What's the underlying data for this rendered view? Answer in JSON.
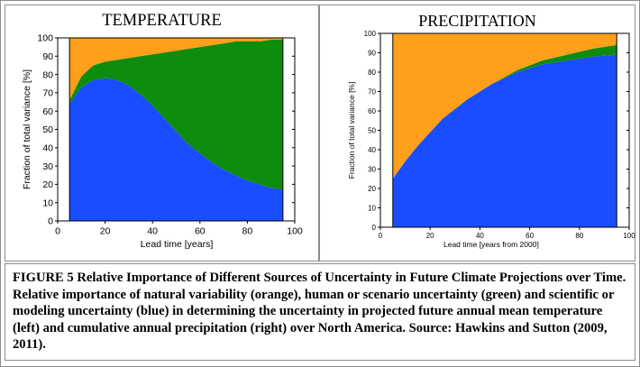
{
  "charts": [
    {
      "panel_title": "TEMPERATURE",
      "ylabel": "Fraction of total variance [%]",
      "xlabel": "Lead time  [years]"
    },
    {
      "panel_title": "PRECIPITATION",
      "ylabel": "Fraction of total variance [%]",
      "xlabel": "Lead time  [years from 2000]"
    }
  ],
  "caption": "FIGURE 5  Relative Importance of Different Sources of Uncertainty in Future Climate Projections over Time. Relative importance of natural variability (orange), human or scenario uncertainty (green) and scientific or modeling uncertainty (blue) in determining the uncertainty in projected future annual mean temperature (left) and cumulative annual precipitation (right) over North America. Source: Hawkins and Sutton (2009, 2011).",
  "colors": {
    "natural": "#ff9f1a",
    "scenario": "#0d8c0d",
    "model": "#1a4dff"
  },
  "chart_data": [
    {
      "type": "area",
      "title": "TEMPERATURE",
      "xlabel": "Lead time  [years]",
      "ylabel": "Fraction of total variance [%]",
      "xlim": [
        0,
        100
      ],
      "ylim": [
        0,
        100
      ],
      "xticks": [
        0,
        20,
        40,
        60,
        80,
        100
      ],
      "yticks": [
        0,
        10,
        20,
        30,
        40,
        50,
        60,
        70,
        80,
        90,
        100
      ],
      "x": [
        5,
        10,
        15,
        20,
        25,
        30,
        35,
        40,
        45,
        50,
        55,
        60,
        65,
        70,
        75,
        80,
        85,
        90,
        95
      ],
      "series": [
        {
          "name": "scientific or modeling uncertainty",
          "color": "#1a4dff",
          "values": [
            64,
            73,
            77,
            78,
            77,
            74,
            69,
            63,
            56,
            49,
            42,
            37,
            32,
            28,
            25,
            22,
            20,
            18,
            17
          ]
        },
        {
          "name": "human or scenario uncertainty",
          "color": "#0d8c0d",
          "values": [
            2,
            6,
            8,
            9,
            11,
            15,
            21,
            28,
            36,
            44,
            52,
            58,
            64,
            69,
            73,
            76,
            78,
            81,
            82
          ]
        },
        {
          "name": "natural variability",
          "color": "#ff9f1a",
          "values": [
            34,
            21,
            15,
            13,
            12,
            11,
            10,
            9,
            8,
            7,
            6,
            5,
            4,
            3,
            2,
            2,
            2,
            1,
            1
          ]
        }
      ],
      "grid": false
    },
    {
      "type": "area",
      "title": "PRECIPITATION",
      "xlabel": "Lead time  [years from 2000]",
      "ylabel": "Fraction of total variance [%]",
      "xlim": [
        0,
        100
      ],
      "ylim": [
        0,
        100
      ],
      "xticks": [
        0,
        20,
        40,
        60,
        80,
        100
      ],
      "yticks": [
        0,
        10,
        20,
        30,
        40,
        50,
        60,
        70,
        80,
        90,
        100
      ],
      "x": [
        5,
        10,
        15,
        20,
        25,
        30,
        35,
        40,
        45,
        50,
        55,
        60,
        65,
        70,
        75,
        80,
        85,
        90,
        95
      ],
      "series": [
        {
          "name": "scientific or modeling uncertainty",
          "color": "#1a4dff",
          "values": [
            25,
            34,
            42,
            49,
            56,
            61,
            66,
            70,
            74,
            77,
            80,
            82,
            84,
            85,
            86,
            87,
            88,
            88.5,
            89
          ]
        },
        {
          "name": "human or scenario uncertainty",
          "color": "#0d8c0d",
          "values": [
            0,
            0,
            0,
            0,
            0,
            0,
            0,
            0,
            0,
            0.5,
            1,
            1.5,
            2,
            2.5,
            3,
            3.5,
            4,
            4.5,
            5
          ]
        },
        {
          "name": "natural variability",
          "color": "#ff9f1a",
          "values": [
            75,
            66,
            58,
            51,
            44,
            39,
            34,
            30,
            26,
            22.5,
            19,
            16.5,
            14,
            12.5,
            11,
            9.5,
            8,
            7,
            6
          ]
        }
      ],
      "grid": false
    }
  ]
}
